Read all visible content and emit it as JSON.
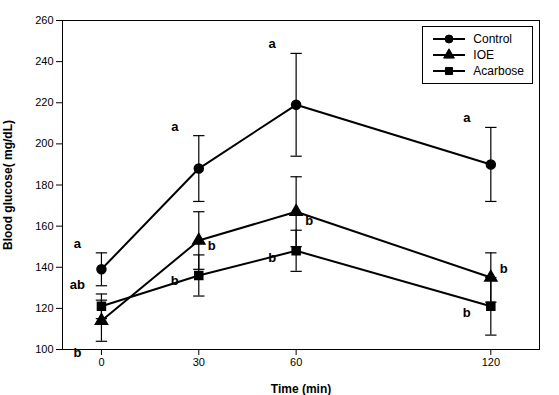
{
  "chart_data": {
    "type": "line",
    "xlabel": "Time (min)",
    "ylabel": "Blood glucose( mg/dL)",
    "x": [
      0,
      30,
      60,
      120
    ],
    "xlim": [
      -12,
      135
    ],
    "xticks": [
      0,
      30,
      60,
      120
    ],
    "ylim": [
      100,
      260
    ],
    "yticks": [
      100,
      120,
      140,
      160,
      180,
      200,
      220,
      240,
      260
    ],
    "grid": false,
    "legend": "upper right",
    "series": [
      {
        "name": "Control",
        "color": "#000000",
        "marker": "circle",
        "values": [
          139,
          188,
          219,
          190
        ],
        "errors": [
          8,
          16,
          25,
          18
        ],
        "annotations": [
          "a",
          "a",
          "a",
          "a"
        ]
      },
      {
        "name": "IOE",
        "color": "#000000",
        "marker": "triangle",
        "values": [
          114,
          153,
          167,
          135
        ],
        "errors": [
          10,
          14,
          17,
          12
        ],
        "annotations": [
          "b",
          "b",
          "b",
          "b"
        ]
      },
      {
        "name": "Acarbose",
        "color": "#000000",
        "marker": "square",
        "values": [
          121,
          136,
          148,
          121
        ],
        "errors": [
          6,
          10,
          10,
          14
        ],
        "annotations": [
          "ab",
          "b",
          "b",
          "b"
        ]
      }
    ]
  }
}
